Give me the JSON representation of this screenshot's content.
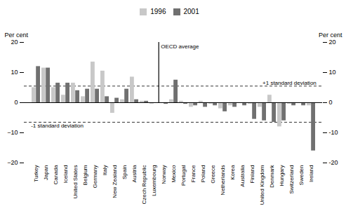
{
  "chart_data": {
    "type": "bar",
    "categories": [
      "Turkey",
      "Japan",
      "Canada",
      "Iceland",
      "United States",
      "Belgium",
      "Germany",
      "Italy",
      "New Zealand",
      "Spain",
      "Austria",
      "Czech Republic",
      "Luxembourg",
      "Norway",
      "Mexico",
      "Portugal",
      "France",
      "Poland",
      "Greece",
      "Netherlands",
      "Korea",
      "Australia",
      "Finland",
      "United Kingdom",
      "Denmark",
      "Hungary",
      "Switzerland",
      "Sweden",
      "Ireland"
    ],
    "series": [
      {
        "name": "1996",
        "color": "#c8c8c8",
        "values": [
          5.0,
          11.5,
          5.0,
          2.5,
          6.5,
          2.0,
          13.5,
          10.5,
          -3.5,
          1.0,
          8.5,
          0.5,
          -0.5,
          0.0,
          1.0,
          0.5,
          -1.5,
          0.5,
          -0.5,
          -2.0,
          -1.0,
          0.0,
          -0.5,
          -1.5,
          2.5,
          -8.0,
          -0.5,
          0.0,
          -1.0
        ]
      },
      {
        "name": "2001",
        "color": "#707070",
        "values": [
          12.0,
          11.5,
          6.5,
          6.5,
          4.0,
          4.5,
          4.5,
          2.0,
          1.5,
          4.5,
          1.0,
          0.5,
          0.0,
          -0.5,
          7.5,
          -0.5,
          -1.0,
          -1.5,
          -1.0,
          -3.0,
          -1.5,
          -1.0,
          -5.5,
          -6.0,
          -6.5,
          -6.0,
          -1.0,
          -1.0,
          -16.0
        ]
      }
    ],
    "ylabel": "Per cent",
    "ylim": [
      -20,
      20
    ],
    "yticks": [
      -20,
      -10,
      0,
      10,
      20
    ],
    "y2label": "Per cent",
    "y2lim": [
      -20,
      20
    ],
    "y2ticks": [
      -20,
      -10,
      0,
      10,
      20
    ],
    "hlines": [
      {
        "y": 5.5,
        "label": "+1 standard deviation",
        "line_style": "dashed"
      },
      {
        "y": -6.5,
        "label": "-1 standard deviation",
        "line_style": "dashed"
      },
      {
        "y": 0,
        "line_style": "solid"
      }
    ],
    "vline": {
      "before": "Norway",
      "label": "OECD average"
    },
    "legend": "top",
    "grid": false
  }
}
